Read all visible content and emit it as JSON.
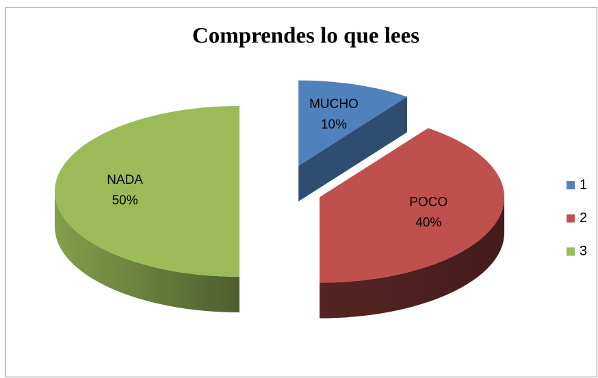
{
  "chart_data": {
    "type": "pie3d",
    "title": "Comprendes lo que lees",
    "categories": [
      "1",
      "2",
      "3"
    ],
    "label_names": [
      "MUCHO",
      "POCO",
      "NADA"
    ],
    "values": [
      10,
      40,
      50
    ],
    "value_labels": [
      "10%",
      "40%",
      "50%"
    ],
    "colors": [
      "#4f81bd",
      "#c0504d",
      "#9bbb59"
    ],
    "legend": "right"
  }
}
